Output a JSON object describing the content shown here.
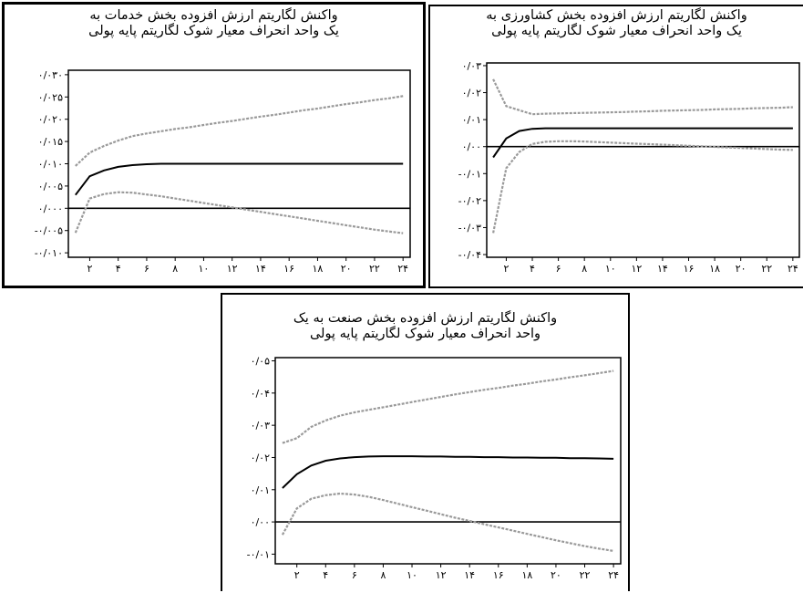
{
  "chart_data": [
    {
      "id": "services",
      "type": "line",
      "title_lines": [
        "واکنش لگاریتم ارزش افزوده بخش خدمات به",
        "یک واحد انحراف معیار شوک لگاریتم پایه پولی"
      ],
      "x": [
        1,
        2,
        3,
        4,
        5,
        6,
        7,
        8,
        9,
        10,
        11,
        12,
        13,
        14,
        15,
        16,
        17,
        18,
        19,
        20,
        21,
        22,
        23,
        24
      ],
      "xlim": [
        0.5,
        24.5
      ],
      "ylim": [
        -0.011,
        0.031
      ],
      "x_ticks": [
        2,
        4,
        6,
        8,
        10,
        12,
        14,
        16,
        18,
        20,
        22,
        24
      ],
      "x_tick_labels": [
        "۲",
        "۴",
        "۶",
        "۸",
        "۱۰",
        "۱۲",
        "۱۴",
        "۱۶",
        "۱۸",
        "۲۰",
        "۲۲",
        "۲۴"
      ],
      "y_ticks": [
        -0.01,
        -0.005,
        0.0,
        0.005,
        0.01,
        0.015,
        0.02,
        0.025,
        0.03
      ],
      "y_tick_labels": [
        "-۰/۰۱۰",
        "-۰/۰۰۵",
        "۰/۰۰۰",
        "۰/۰۰۵",
        "۰/۰۱۰",
        "۰/۰۱۵",
        "۰/۰۲۰",
        "۰/۰۲۵",
        "۰/۰۳۰"
      ],
      "zero_line": 0.0,
      "series": [
        {
          "role": "upper",
          "values": [
            0.0095,
            0.0125,
            0.014,
            0.0152,
            0.0162,
            0.0168,
            0.0173,
            0.0178,
            0.0182,
            0.0187,
            0.0192,
            0.0196,
            0.0201,
            0.0206,
            0.021,
            0.0215,
            0.022,
            0.0224,
            0.0229,
            0.0234,
            0.0238,
            0.0243,
            0.0247,
            0.0252
          ],
          "color": "#9a9a9a",
          "dashed": true
        },
        {
          "role": "response",
          "values": [
            0.003,
            0.0072,
            0.0085,
            0.0093,
            0.0097,
            0.0099,
            0.01,
            0.01,
            0.01,
            0.01,
            0.01,
            0.01,
            0.01,
            0.01,
            0.01,
            0.01,
            0.01,
            0.01,
            0.01,
            0.01,
            0.01,
            0.01,
            0.01,
            0.01
          ],
          "color": "#000000",
          "dashed": false
        },
        {
          "role": "lower",
          "values": [
            -0.0055,
            0.0022,
            0.0032,
            0.0036,
            0.0035,
            0.0031,
            0.0027,
            0.0022,
            0.0017,
            0.0012,
            0.0007,
            0.0002,
            -0.0003,
            -0.0008,
            -0.0013,
            -0.0018,
            -0.0023,
            -0.0028,
            -0.0033,
            -0.0038,
            -0.0043,
            -0.0048,
            -0.0052,
            -0.0056
          ],
          "color": "#9a9a9a",
          "dashed": true
        }
      ]
    },
    {
      "id": "agriculture",
      "type": "line",
      "title_lines": [
        "واکنش لگاریتم ارزش افزوده بخش کشاورزی به",
        "یک واحد انحراف معیار شوک لگاریتم پایه پولی"
      ],
      "x": [
        1,
        2,
        3,
        4,
        5,
        6,
        7,
        8,
        9,
        10,
        11,
        12,
        13,
        14,
        15,
        16,
        17,
        18,
        19,
        20,
        21,
        22,
        23,
        24
      ],
      "xlim": [
        0.5,
        24.5
      ],
      "ylim": [
        -0.041,
        0.031
      ],
      "x_ticks": [
        2,
        4,
        6,
        8,
        10,
        12,
        14,
        16,
        18,
        20,
        22,
        24
      ],
      "x_tick_labels": [
        "۲",
        "۴",
        "۶",
        "۸",
        "۱۰",
        "۱۲",
        "۱۴",
        "۱۶",
        "۱۸",
        "۲۰",
        "۲۲",
        "۲۴"
      ],
      "y_ticks": [
        -0.04,
        -0.03,
        -0.02,
        -0.01,
        0.0,
        0.01,
        0.02,
        0.03
      ],
      "y_tick_labels": [
        "-۰/۰۴",
        "-۰/۰۳",
        "-۰/۰۲",
        "-۰/۰۱",
        "۰/۰۰",
        "۰/۰۱",
        "۰/۰۲",
        "۰/۰۳"
      ],
      "zero_line": 0.0,
      "series": [
        {
          "role": "upper",
          "values": [
            0.025,
            0.015,
            0.0135,
            0.012,
            0.0122,
            0.0123,
            0.0124,
            0.0125,
            0.0126,
            0.0127,
            0.0128,
            0.013,
            0.0131,
            0.0133,
            0.0134,
            0.0135,
            0.0136,
            0.0138,
            0.0139,
            0.014,
            0.0142,
            0.0143,
            0.0144,
            0.0146
          ],
          "color": "#9a9a9a",
          "dashed": true
        },
        {
          "role": "response",
          "values": [
            -0.004,
            0.003,
            0.0058,
            0.0066,
            0.0068,
            0.0068,
            0.0068,
            0.0068,
            0.0068,
            0.0068,
            0.0068,
            0.0068,
            0.0068,
            0.0068,
            0.0068,
            0.0068,
            0.0068,
            0.0068,
            0.0068,
            0.0068,
            0.0068,
            0.0068,
            0.0068,
            0.0068
          ],
          "color": "#000000",
          "dashed": false
        },
        {
          "role": "lower",
          "values": [
            -0.032,
            -0.008,
            -0.002,
            0.001,
            0.0018,
            0.002,
            0.002,
            0.0019,
            0.0017,
            0.0015,
            0.0013,
            0.0011,
            0.0009,
            0.0007,
            0.0005,
            0.0003,
            0.0001,
            -0.0001,
            -0.0003,
            -0.0005,
            -0.0007,
            -0.0009,
            -0.0011,
            -0.0012
          ],
          "color": "#9a9a9a",
          "dashed": true
        }
      ]
    },
    {
      "id": "industry",
      "type": "line",
      "title_lines": [
        "واکنش لگاریتم ارزش افزوده بخش صنعت به یک",
        "واحد انحراف معیار شوک لگاریتم پایه پولی"
      ],
      "x": [
        1,
        2,
        3,
        4,
        5,
        6,
        7,
        8,
        9,
        10,
        11,
        12,
        13,
        14,
        15,
        16,
        17,
        18,
        19,
        20,
        21,
        22,
        23,
        24
      ],
      "xlim": [
        0.5,
        24.5
      ],
      "ylim": [
        -0.013,
        0.051
      ],
      "x_ticks": [
        2,
        4,
        6,
        8,
        10,
        12,
        14,
        16,
        18,
        20,
        22,
        24
      ],
      "x_tick_labels": [
        "۲",
        "۴",
        "۶",
        "۸",
        "۱۰",
        "۱۲",
        "۱۴",
        "۱۶",
        "۱۸",
        "۲۰",
        "۲۲",
        "۲۴"
      ],
      "y_ticks": [
        -0.01,
        0.0,
        0.01,
        0.02,
        0.03,
        0.04,
        0.05
      ],
      "y_tick_labels": [
        "-۰/۰۱",
        "۰/۰۰",
        "۰/۰۱",
        "۰/۰۲",
        "۰/۰۳",
        "۰/۰۴",
        "۰/۰۵"
      ],
      "zero_line": 0.0,
      "series": [
        {
          "role": "upper",
          "values": [
            0.0245,
            0.026,
            0.0295,
            0.0315,
            0.033,
            0.034,
            0.0348,
            0.0356,
            0.0364,
            0.0372,
            0.038,
            0.0388,
            0.0396,
            0.0403,
            0.041,
            0.0416,
            0.0423,
            0.0429,
            0.0436,
            0.0442,
            0.0449,
            0.0455,
            0.0462,
            0.0469
          ],
          "color": "#9a9a9a",
          "dashed": true
        },
        {
          "role": "response",
          "values": [
            0.0105,
            0.0148,
            0.0175,
            0.019,
            0.0197,
            0.0201,
            0.0203,
            0.0204,
            0.0204,
            0.0204,
            0.0203,
            0.0203,
            0.0202,
            0.0202,
            0.0201,
            0.0201,
            0.02,
            0.02,
            0.0199,
            0.0199,
            0.0198,
            0.0198,
            0.0197,
            0.0196
          ],
          "color": "#000000",
          "dashed": false
        },
        {
          "role": "lower",
          "values": [
            -0.004,
            0.0042,
            0.0072,
            0.0083,
            0.0088,
            0.0085,
            0.0078,
            0.0068,
            0.0057,
            0.0046,
            0.0035,
            0.0024,
            0.0013,
            0.0003,
            -0.0007,
            -0.0017,
            -0.0027,
            -0.0037,
            -0.0047,
            -0.0057,
            -0.0066,
            -0.0075,
            -0.0083,
            -0.009
          ],
          "color": "#9a9a9a",
          "dashed": true
        }
      ]
    }
  ]
}
